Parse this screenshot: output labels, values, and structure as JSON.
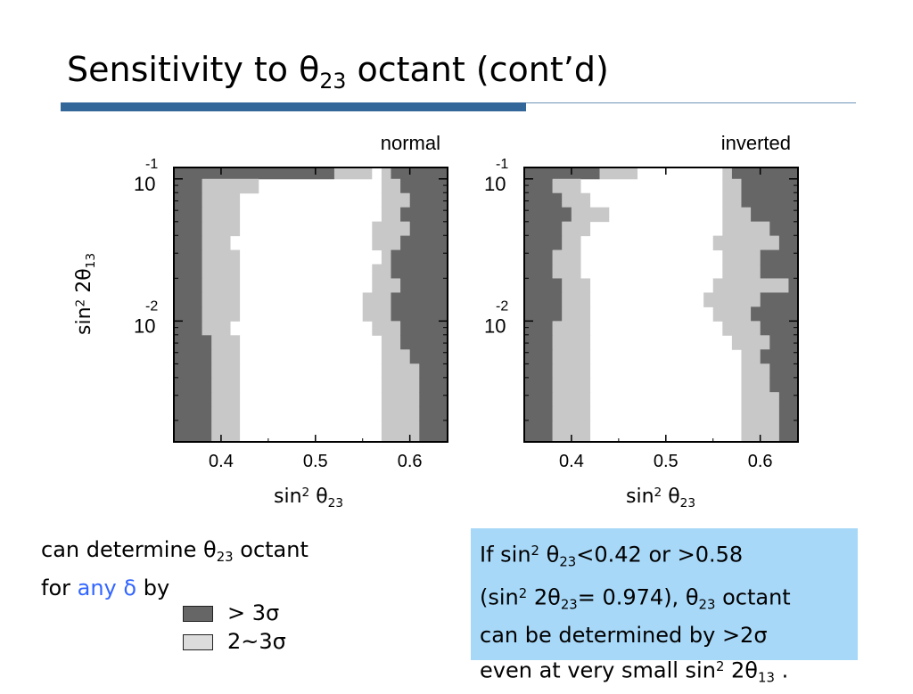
{
  "title": {
    "pre": "Sensitivity to ",
    "theta": "θ",
    "sub": "23",
    "post": " octant (cont’d)"
  },
  "y_axis_label": {
    "pre": "sin",
    "sup": "2",
    "mid": " 2θ",
    "sub": "13"
  },
  "x_axis_label": {
    "pre": "sin",
    "sup": "2",
    "mid": " θ",
    "sub": "23"
  },
  "left_text": {
    "line1_pre": "can determine ",
    "theta": "θ",
    "theta_sub": "23",
    "line1_post": " octant",
    "line2_pre": "for ",
    "any": "any",
    "delta": "δ",
    "line2_post": " by"
  },
  "legend": [
    {
      "label": "> 3σ",
      "color": "#666666"
    },
    {
      "label": "2~3σ",
      "color": "#dcdcdc"
    }
  ],
  "info_box": {
    "l1_pre": "If sin",
    "l1_sup": "2",
    "l1_th": " θ",
    "l1_sub": "23",
    "l1_post": "<0.42 or >0.58",
    "l2_pre": "(sin",
    "l2_sup": "2",
    "l2_th": " 2θ",
    "l2_sub": "23",
    "l2_mid": "= 0.974), θ",
    "l2_sub2": "23",
    "l2_post": " octant",
    "l3": "can be determined by >2σ",
    "l4_pre": "even at very small sin",
    "l4_sup": "2",
    "l4_th": " 2θ",
    "l4_sub": "13",
    "l4_post": " ."
  },
  "chart_data": [
    {
      "type": "heatmap",
      "title": "normal",
      "x_ticks": [
        "0.4",
        "0.5",
        "0.6"
      ],
      "y_ticks": [
        {
          "base": "10",
          "exp": "-1"
        },
        {
          "base": "10",
          "exp": "-2"
        }
      ],
      "xlim": [
        0.35,
        0.64
      ],
      "ylim_log10": [
        -2.85,
        -0.92
      ],
      "y_bands_log10": [
        -0.92,
        -1.0,
        -1.1,
        -1.2,
        -1.3,
        -1.4,
        -1.5,
        -1.6,
        -1.7,
        -1.8,
        -1.9,
        -2.0,
        -2.1,
        -2.2,
        -2.3,
        -2.4,
        -2.5,
        -2.6,
        -2.7,
        -2.85
      ],
      "left_dark_edge": [
        0.52,
        0.38,
        0.38,
        0.38,
        0.38,
        0.38,
        0.38,
        0.38,
        0.38,
        0.38,
        0.38,
        0.38,
        0.39,
        0.39,
        0.39,
        0.39,
        0.39,
        0.39,
        0.39
      ],
      "left_light_edge": [
        0.56,
        0.44,
        0.42,
        0.42,
        0.42,
        0.41,
        0.42,
        0.42,
        0.42,
        0.42,
        0.42,
        0.41,
        0.42,
        0.42,
        0.42,
        0.42,
        0.42,
        0.42,
        0.42
      ],
      "right_light_edge": [
        0.57,
        0.57,
        0.57,
        0.57,
        0.56,
        0.56,
        0.57,
        0.56,
        0.56,
        0.55,
        0.55,
        0.56,
        0.57,
        0.57,
        0.57,
        0.57,
        0.57,
        0.57,
        0.57
      ],
      "right_dark_edge": [
        0.58,
        0.59,
        0.6,
        0.59,
        0.6,
        0.59,
        0.58,
        0.58,
        0.59,
        0.58,
        0.58,
        0.59,
        0.59,
        0.6,
        0.61,
        0.61,
        0.61,
        0.61,
        0.61
      ]
    },
    {
      "type": "heatmap",
      "title": "inverted",
      "x_ticks": [
        "0.4",
        "0.5",
        "0.6"
      ],
      "y_ticks": [
        {
          "base": "10",
          "exp": "-1"
        },
        {
          "base": "10",
          "exp": "-2"
        }
      ],
      "xlim": [
        0.35,
        0.64
      ],
      "ylim_log10": [
        -2.85,
        -0.92
      ],
      "y_bands_log10": [
        -0.92,
        -1.0,
        -1.1,
        -1.2,
        -1.3,
        -1.4,
        -1.5,
        -1.6,
        -1.7,
        -1.8,
        -1.9,
        -2.0,
        -2.1,
        -2.2,
        -2.3,
        -2.4,
        -2.5,
        -2.6,
        -2.7,
        -2.85
      ],
      "left_dark_edge": [
        0.43,
        0.38,
        0.39,
        0.4,
        0.39,
        0.39,
        0.38,
        0.38,
        0.39,
        0.39,
        0.39,
        0.38,
        0.38,
        0.38,
        0.38,
        0.38,
        0.38,
        0.38,
        0.38
      ],
      "left_light_edge": [
        0.47,
        0.41,
        0.42,
        0.44,
        0.42,
        0.41,
        0.41,
        0.41,
        0.42,
        0.42,
        0.42,
        0.42,
        0.42,
        0.42,
        0.42,
        0.42,
        0.42,
        0.42,
        0.42
      ],
      "right_light_edge": [
        0.56,
        0.56,
        0.56,
        0.56,
        0.56,
        0.55,
        0.56,
        0.56,
        0.55,
        0.54,
        0.55,
        0.56,
        0.57,
        0.58,
        0.58,
        0.58,
        0.58,
        0.58,
        0.58
      ],
      "right_dark_edge": [
        0.57,
        0.58,
        0.58,
        0.59,
        0.61,
        0.62,
        0.6,
        0.6,
        0.63,
        0.6,
        0.59,
        0.6,
        0.61,
        0.6,
        0.61,
        0.61,
        0.62,
        0.62,
        0.62
      ]
    }
  ]
}
